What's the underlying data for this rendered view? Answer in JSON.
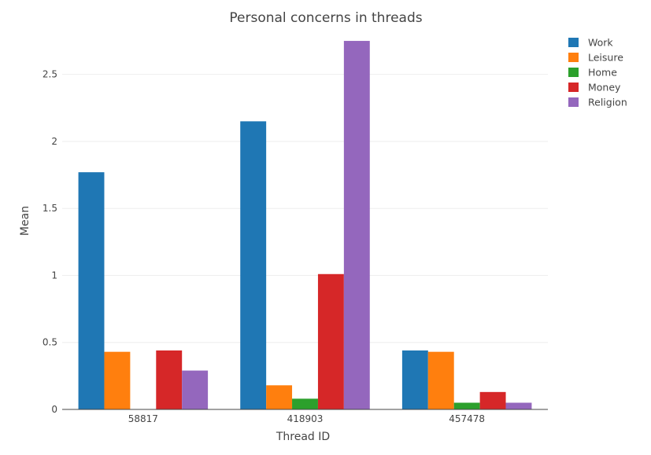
{
  "chart_data": {
    "type": "bar",
    "title": "Personal concerns in threads",
    "xlabel": "Thread ID",
    "ylabel": "Mean",
    "categories": [
      "58817",
      "418903",
      "457478"
    ],
    "ylim": [
      0,
      2.85
    ],
    "yticks": [
      0,
      0.5,
      1,
      1.5,
      2,
      2.5
    ],
    "ytick_labels": [
      "0",
      "0.5",
      "1",
      "1.5",
      "2",
      "2.5"
    ],
    "grid": true,
    "legend_position": "top-right",
    "series": [
      {
        "name": "Work",
        "color": "#1f77b4",
        "values": [
          1.77,
          2.15,
          0.44
        ]
      },
      {
        "name": "Leisure",
        "color": "#ff7f0e",
        "values": [
          0.43,
          0.18,
          0.43
        ]
      },
      {
        "name": "Home",
        "color": "#2ca02c",
        "values": [
          0,
          0.08,
          0.05
        ]
      },
      {
        "name": "Money",
        "color": "#d62728",
        "values": [
          0.44,
          1.01,
          0.13
        ]
      },
      {
        "name": "Religion",
        "color": "#9467bd",
        "values": [
          0.29,
          2.75,
          0.05
        ]
      }
    ]
  }
}
